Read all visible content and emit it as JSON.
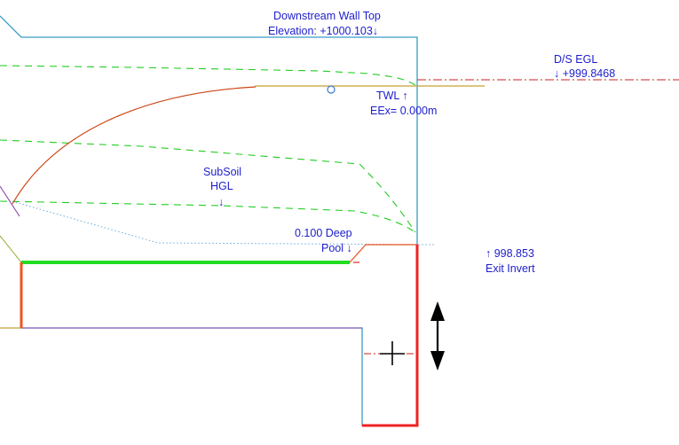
{
  "labels": {
    "wall_top_title": "Downstream Wall Top",
    "wall_top_elevation": "Elevation: +1000.103↓",
    "ds_egl_title": "D/S EGL",
    "ds_egl_value": "↓ +999.8468",
    "twl_title": "TWL ↑",
    "twl_eex": "EEx= 0.000m",
    "subsoil_line1": "SubSoil",
    "subsoil_line2": "HGL",
    "subsoil_arrow": "↓",
    "pool_line1": "0.100 Deep",
    "pool_line2": "Pool ↓",
    "exit_invert_value": "↑ 998.853",
    "exit_invert_title": "Exit Invert"
  },
  "icons": {
    "move": "vertical-move-arrow-icon",
    "crosshair": "crosshair-cursor-icon",
    "node": "circle-node-icon"
  },
  "colors": {
    "label_text": "#1d1dcc",
    "structure_outline": "#3a9cc8",
    "water_level": "#c8a030",
    "egl_dash": "#cc2222",
    "hgl_dash": "#22cc22",
    "thick_floor": "#22dd22",
    "wall_red": "#ee2222",
    "curve": "#cc4411",
    "purple": "#8844aa",
    "dotted_hgl": "#66aadd"
  }
}
